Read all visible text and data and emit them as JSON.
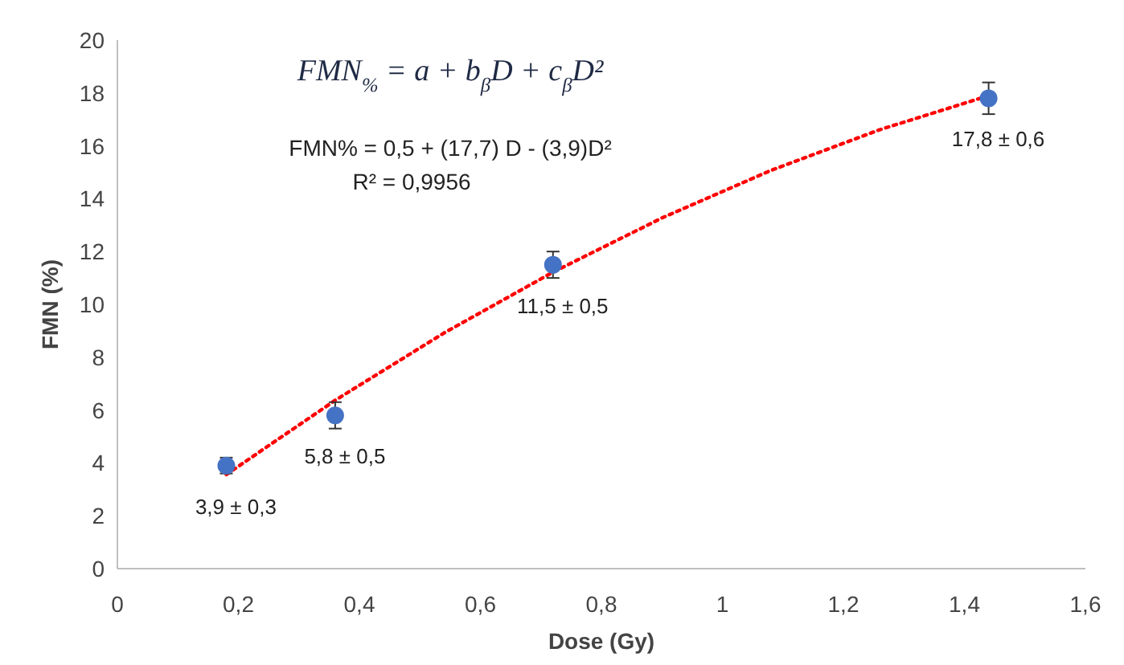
{
  "chart_data": {
    "type": "scatter",
    "xlabel": "Dose (Gy)",
    "ylabel": "FMN (%)",
    "xlim": [
      0,
      1.6
    ],
    "xticks": [
      0,
      {
        "value": 0.2,
        "label": "0,2"
      },
      {
        "value": 0.4,
        "label": "0,4"
      },
      {
        "value": 0.6,
        "label": "0,6"
      },
      {
        "value": 0.8,
        "label": "0,8"
      },
      1,
      {
        "value": 1.2,
        "label": "1,2"
      },
      {
        "value": 1.4,
        "label": "1,4"
      },
      {
        "value": 1.6,
        "label": "1,6"
      }
    ],
    "ylim": [
      0,
      20
    ],
    "yticks": [
      0,
      2,
      4,
      6,
      8,
      10,
      12,
      14,
      16,
      18,
      20
    ],
    "grid": false,
    "series": [
      {
        "color": "#4472c4",
        "marker": "circle",
        "x": [
          0.18,
          0.36,
          0.72,
          1.44
        ],
        "values": [
          3.9,
          5.8,
          11.5,
          17.8
        ],
        "errors": [
          0.3,
          0.5,
          0.5,
          0.6
        ],
        "value_labels": [
          "3,9 ± 0,3",
          "5,8 ± 0,5",
          "11,5 ± 0,5",
          "17,8 ± 0,6"
        ]
      },
      {
        "type": "line",
        "color": "#ff0000",
        "line_style": "dotted",
        "x": [
          0.18,
          0.36,
          0.54,
          0.72,
          0.9,
          1.08,
          1.26,
          1.44
        ],
        "values": [
          3.56,
          6.37,
          8.92,
          11.22,
          13.27,
          15.07,
          16.61,
          17.9
        ]
      }
    ],
    "annotations": [
      "FMN$_{%}$ = a + b$_{β}$D + c$_{β}$D²",
      "FMN% =  0,5 + (17,7) D - (3,9)D²",
      "R² = 0,9956"
    ]
  }
}
